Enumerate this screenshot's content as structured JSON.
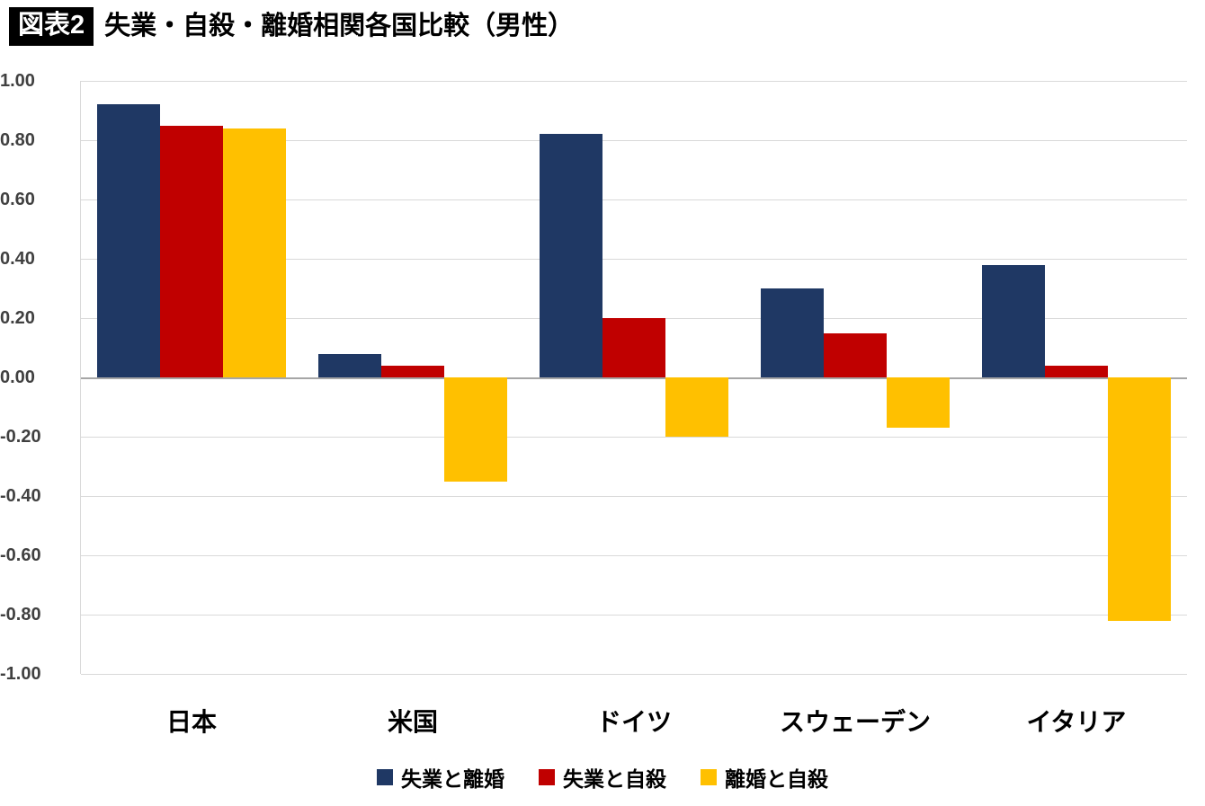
{
  "page": {
    "title_badge": "図表2",
    "title": "失業・自殺・離婚相関各国比較（男性）"
  },
  "chart_data": {
    "type": "bar",
    "title": "失業・自殺・離婚相関各国比較（男性）",
    "categories": [
      "日本",
      "米国",
      "ドイツ",
      "スウェーデン",
      "イタリア"
    ],
    "series": [
      {
        "name": "失業と離婚",
        "color": "#1f3864",
        "values": [
          0.92,
          0.08,
          0.82,
          0.3,
          0.38
        ]
      },
      {
        "name": "失業と自殺",
        "color": "#c00000",
        "values": [
          0.85,
          0.04,
          0.2,
          0.15,
          0.04
        ]
      },
      {
        "name": "離婚と自殺",
        "color": "#ffc000",
        "values": [
          0.84,
          -0.35,
          -0.2,
          -0.17,
          -0.82
        ]
      }
    ],
    "ylim": [
      -1.0,
      1.0
    ],
    "ytick_step": 0.2,
    "yticks": [
      "1.00",
      "0.80",
      "0.60",
      "0.40",
      "0.20",
      "0.00",
      "-0.20",
      "-0.40",
      "-0.60",
      "-0.80",
      "-1.00"
    ],
    "grid": true,
    "legend_position": "bottom"
  }
}
